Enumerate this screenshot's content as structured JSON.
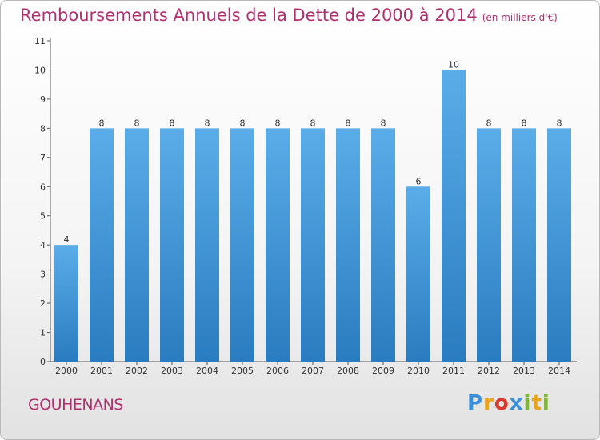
{
  "header": {
    "title": "Remboursements Annuels de la Dette de 2000 à 2014",
    "unit": "(en milliers d'€)"
  },
  "footer": {
    "place": "GOUHENANS",
    "brand": "Proxiti"
  },
  "colors": {
    "title": "#b0306e",
    "bar_top": "#5aade8",
    "bar_bottom": "#2a7cc0",
    "axis": "#555555"
  },
  "chart_data": {
    "type": "bar",
    "title": "Remboursements Annuels de la Dette de 2000 à 2014",
    "subtitle": "(en milliers d'€)",
    "xlabel": "",
    "ylabel": "",
    "categories": [
      "2000",
      "2001",
      "2002",
      "2003",
      "2004",
      "2005",
      "2006",
      "2007",
      "2008",
      "2009",
      "2010",
      "2011",
      "2012",
      "2013",
      "2014"
    ],
    "values": [
      4,
      8,
      8,
      8,
      8,
      8,
      8,
      8,
      8,
      8,
      6,
      10,
      8,
      8,
      8
    ],
    "yticks": [
      "0",
      "1",
      "2",
      "3",
      "4",
      "5",
      "6",
      "7",
      "8",
      "9",
      "10",
      "11"
    ],
    "ylim": [
      0,
      11
    ],
    "grid": false,
    "legend": "none"
  }
}
